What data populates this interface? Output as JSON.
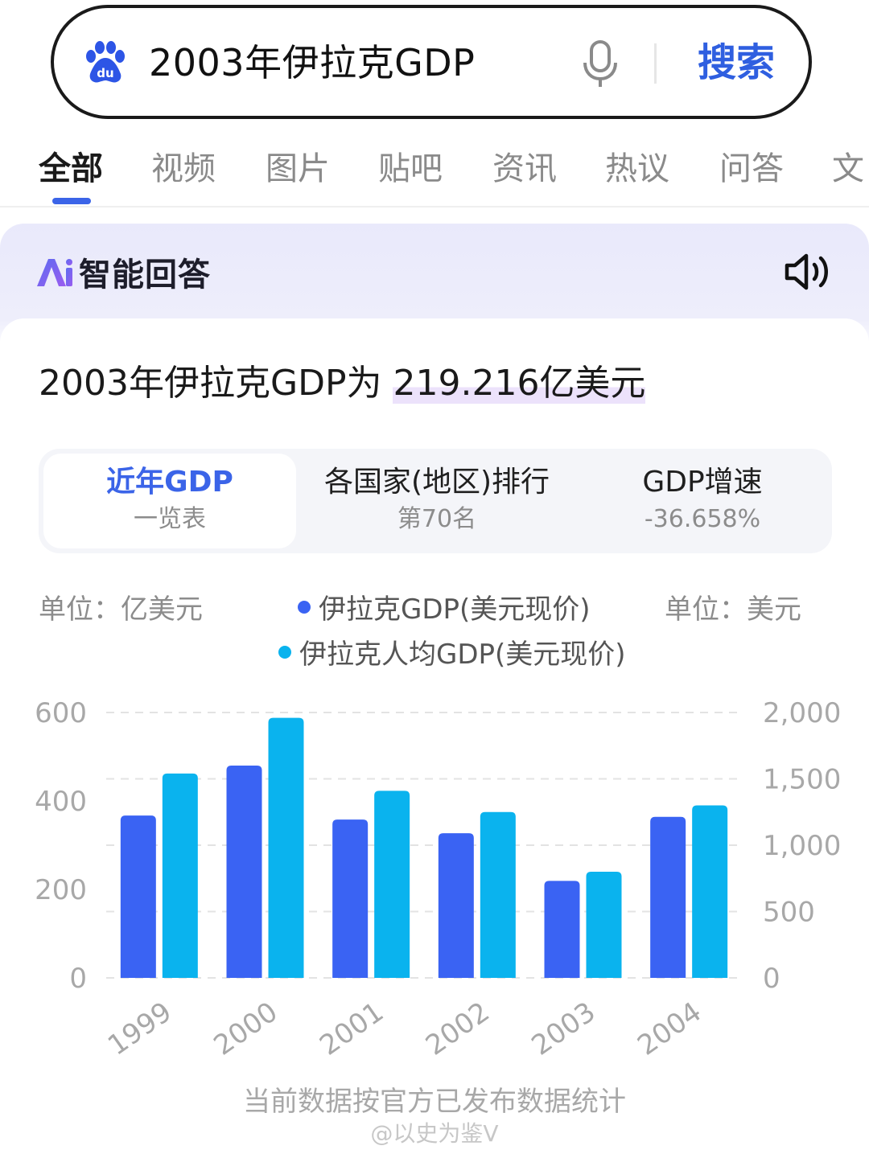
{
  "search": {
    "query": "2003年伊拉克GDP",
    "button_label": "搜索"
  },
  "tabs": [
    {
      "label": "全部",
      "active": true
    },
    {
      "label": "视频"
    },
    {
      "label": "图片"
    },
    {
      "label": "贴吧"
    },
    {
      "label": "资讯"
    },
    {
      "label": "热议"
    },
    {
      "label": "问答"
    },
    {
      "label": "文"
    }
  ],
  "ai": {
    "title": "智能回答",
    "answer_prefix": "2003年伊拉克GDP为 ",
    "answer_value": "219.216亿美元"
  },
  "segments": [
    {
      "line1": "近年GDP",
      "line2": "一览表",
      "active": true
    },
    {
      "line1": "各国家(地区)排行",
      "line2": "第70名"
    },
    {
      "line1": "GDP增速",
      "line2": "-36.658%"
    }
  ],
  "legend": {
    "unit_left": "单位：亿美元",
    "unit_right": "单位：美元",
    "series1": "伊拉克GDP(美元现价)",
    "series2": "伊拉克人均GDP(美元现价)"
  },
  "colors": {
    "series1": "#3a63f3",
    "series2": "#0ab3ee",
    "accent": "#3b64e8"
  },
  "chart_data": {
    "type": "bar",
    "categories": [
      "1999",
      "2000",
      "2001",
      "2002",
      "2003",
      "2004"
    ],
    "series": [
      {
        "name": "伊拉克GDP(美元现价)",
        "axis": "left",
        "values": [
          367,
          480,
          358,
          327,
          219.216,
          364
        ]
      },
      {
        "name": "伊拉克人均GDP(美元现价)",
        "axis": "right",
        "values": [
          1540,
          1960,
          1410,
          1250,
          800,
          1300
        ]
      }
    ],
    "ylim_left": [
      0,
      600
    ],
    "yticks_left": [
      "0",
      "200",
      "400",
      "600"
    ],
    "ylim_right": [
      0,
      2000
    ],
    "yticks_right": [
      "0",
      "500",
      "1,000",
      "1,500",
      "2,000"
    ],
    "grid": true
  },
  "footnote": "当前数据按官方已发布数据统计",
  "watermark": "@以史为鉴V",
  "icons": [
    "baidu-logo-icon",
    "microphone-icon",
    "ai-logo-icon",
    "speaker-icon"
  ]
}
